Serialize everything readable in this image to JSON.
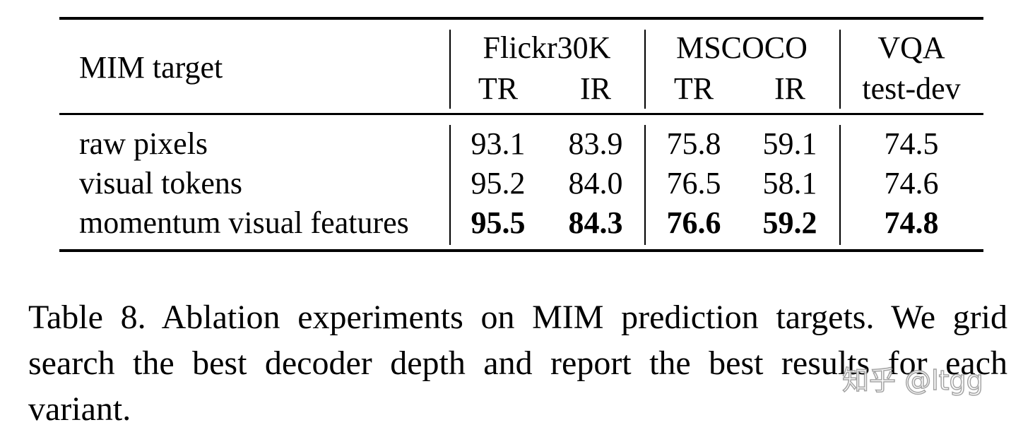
{
  "table": {
    "header": {
      "row_label": "MIM target",
      "groups": [
        "Flickr30K",
        "MSCOCO",
        "VQA"
      ],
      "subheaders": [
        "TR",
        "IR",
        "TR",
        "IR",
        "test-dev"
      ]
    },
    "rows": [
      {
        "label": "raw pixels",
        "values": [
          "93.1",
          "83.9",
          "75.8",
          "59.1",
          "74.5"
        ],
        "bold": false
      },
      {
        "label": "visual tokens",
        "values": [
          "95.2",
          "84.0",
          "76.5",
          "58.1",
          "74.6"
        ],
        "bold": false
      },
      {
        "label": "momentum visual features",
        "values": [
          "95.5",
          "84.3",
          "76.6",
          "59.2",
          "74.8"
        ],
        "bold": true
      }
    ]
  },
  "caption": "Table 8. Ablation experiments on MIM prediction targets. We grid search the best decoder depth and report the best results for each variant.",
  "watermark": "知乎 @ltgg"
}
